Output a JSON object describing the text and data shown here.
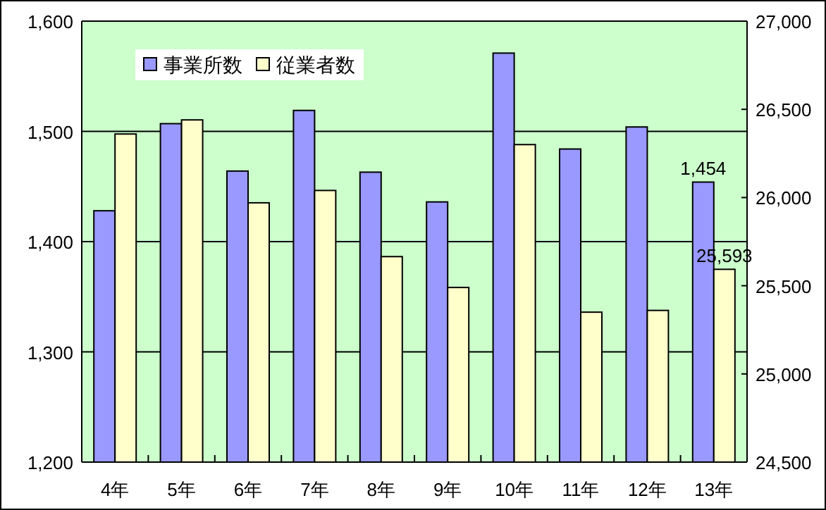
{
  "chart_data": {
    "type": "bar",
    "categories": [
      "4年",
      "5年",
      "6年",
      "7年",
      "8年",
      "9年",
      "10年",
      "11年",
      "12年",
      "13年"
    ],
    "series": [
      {
        "name": "事業所数",
        "color": "#9999ff",
        "values": [
          1428,
          1507,
          1464,
          1519,
          1463,
          1436,
          1571,
          1484,
          1504,
          1454
        ],
        "value_labels": [
          null,
          null,
          null,
          null,
          null,
          null,
          null,
          null,
          null,
          "1,454"
        ]
      },
      {
        "name": "従業者数",
        "color": "#ffffcc",
        "axis": "y2",
        "values": [
          26360,
          26440,
          25970,
          26040,
          25665,
          25490,
          26300,
          25350,
          25360,
          25593
        ],
        "value_labels": [
          null,
          null,
          null,
          null,
          null,
          null,
          null,
          null,
          null,
          "25,593"
        ]
      }
    ],
    "ylim": [
      1200,
      1600
    ],
    "yticks": [
      {
        "value": 1200,
        "label": "1,200"
      },
      {
        "value": 1300,
        "label": "1,300"
      },
      {
        "value": 1400,
        "label": "1,400"
      },
      {
        "value": 1500,
        "label": "1,500"
      },
      {
        "value": 1600,
        "label": "1,600"
      }
    ],
    "y2lim": [
      24500,
      27000
    ],
    "y2ticks": [
      {
        "value": 24500,
        "label": "24,500"
      },
      {
        "value": 25000,
        "label": "25,000"
      },
      {
        "value": 25500,
        "label": "25,500"
      },
      {
        "value": 26000,
        "label": "26,000"
      },
      {
        "value": 26500,
        "label": "26,500"
      },
      {
        "value": 27000,
        "label": "27,000"
      }
    ],
    "grid": "y",
    "legend": "top left"
  }
}
